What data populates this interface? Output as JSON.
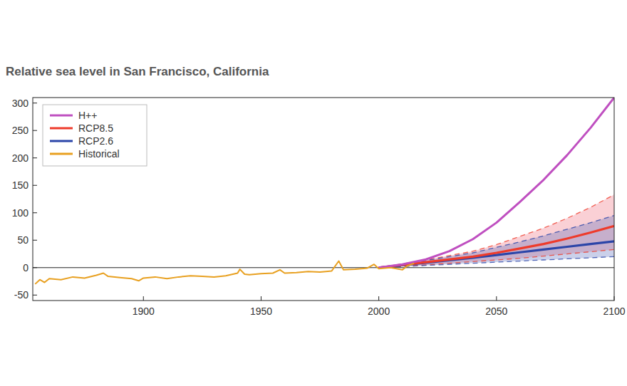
{
  "chart_data": {
    "type": "line",
    "title": "Relative sea level in San Francisco, California",
    "xlim": [
      1853,
      2100
    ],
    "xticks": [
      1900,
      1950,
      2000,
      2050,
      2100
    ],
    "ylim": [
      -60,
      310
    ],
    "yticks": [
      -50,
      0,
      50,
      100,
      150,
      200,
      250,
      300
    ],
    "grid": false,
    "legend": "upper left",
    "series": [
      {
        "name": "H++",
        "color": "#bf4fc0",
        "line_style": "solid",
        "x": [
          2000,
          2010,
          2020,
          2030,
          2040,
          2050,
          2060,
          2070,
          2080,
          2090,
          2100
        ],
        "values": [
          0,
          6,
          15,
          30,
          52,
          82,
          120,
          160,
          205,
          255,
          310
        ]
      },
      {
        "name": "RCP8.5",
        "color": "#ee3b2b",
        "line_style": "solid",
        "x": [
          2000,
          2020,
          2040,
          2050,
          2060,
          2070,
          2080,
          2090,
          2100
        ],
        "values": [
          0,
          10,
          20,
          27,
          35,
          43,
          53,
          64,
          76
        ],
        "lower": [
          0,
          5,
          11,
          14,
          17,
          21,
          25,
          29,
          33
        ],
        "upper": [
          0,
          14,
          30,
          42,
          57,
          72,
          90,
          110,
          133
        ]
      },
      {
        "name": "RCP2.6",
        "color": "#2b45a8",
        "line_style": "solid",
        "x": [
          2000,
          2020,
          2040,
          2050,
          2060,
          2070,
          2080,
          2090,
          2100
        ],
        "values": [
          0,
          9,
          18,
          23,
          28,
          33,
          38,
          43,
          48
        ],
        "lower": [
          0,
          4,
          8,
          10,
          12,
          14,
          16,
          18,
          20
        ],
        "upper": [
          0,
          13,
          27,
          37,
          47,
          58,
          70,
          82,
          95
        ]
      },
      {
        "name": "Historical",
        "color": "#e8a020",
        "line_style": "solid",
        "x": [
          1854,
          1856,
          1858,
          1860,
          1865,
          1870,
          1875,
          1880,
          1883,
          1885,
          1890,
          1895,
          1898,
          1900,
          1905,
          1910,
          1915,
          1920,
          1925,
          1930,
          1935,
          1940,
          1941,
          1943,
          1945,
          1950,
          1955,
          1958,
          1960,
          1965,
          1970,
          1975,
          1980,
          1983,
          1985,
          1990,
          1995,
          1998,
          2000,
          2005,
          2010,
          2012,
          2015
        ],
        "values": [
          -30,
          -22,
          -27,
          -20,
          -22,
          -17,
          -19,
          -14,
          -10,
          -16,
          -18,
          -20,
          -24,
          -19,
          -17,
          -20,
          -17,
          -15,
          -16,
          -17,
          -15,
          -10,
          -3,
          -12,
          -13,
          -11,
          -10,
          -4,
          -10,
          -9,
          -7,
          -8,
          -6,
          12,
          -4,
          -3,
          -1,
          6,
          -2,
          0,
          -4,
          3,
          8
        ]
      }
    ]
  }
}
